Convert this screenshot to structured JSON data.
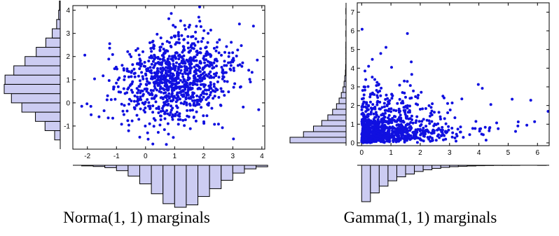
{
  "captions": {
    "left": "Norma(1, 1) marginals",
    "right": "Gamma(1, 1) marginals"
  },
  "colors": {
    "points": "#1010e0",
    "bars": "#ccccf2",
    "axes": "#000000"
  },
  "chart_data": [
    {
      "type": "scatter",
      "title": "",
      "xlabel": "",
      "ylabel": "",
      "xlim": [
        -2.5,
        4.1
      ],
      "ylim": [
        -2.0,
        4.2
      ],
      "x_ticks": [
        -2,
        -1,
        0,
        1,
        2,
        3,
        4
      ],
      "y_ticks": [
        -1,
        0,
        1,
        2,
        3,
        4
      ],
      "grid": false,
      "n_points": 1000,
      "distribution": {
        "family": "normal",
        "mean": [
          1,
          1
        ],
        "sd": [
          1,
          1
        ],
        "correlation": 0.2
      },
      "marginal_x": {
        "position": "bottom",
        "bin_edges": [
          -2.2,
          -1.8,
          -1.4,
          -1.0,
          -0.6,
          -0.2,
          0.2,
          0.6,
          1.0,
          1.4,
          1.8,
          2.2,
          2.6,
          3.0,
          3.4,
          3.8,
          4.2
        ],
        "counts": [
          2,
          4,
          8,
          18,
          36,
          62,
          95,
          128,
          140,
          132,
          104,
          78,
          50,
          26,
          12,
          5
        ]
      },
      "marginal_y": {
        "position": "left",
        "bin_edges": [
          -1.6,
          -1.2,
          -0.8,
          -0.4,
          0.0,
          0.4,
          0.8,
          1.2,
          1.6,
          2.0,
          2.4,
          2.8,
          3.2,
          3.6,
          4.0,
          4.4
        ],
        "counts": [
          14,
          38,
          62,
          96,
          122,
          140,
          138,
          116,
          88,
          60,
          36,
          20,
          9,
          4,
          2
        ]
      }
    },
    {
      "type": "scatter",
      "title": "",
      "xlabel": "",
      "ylabel": "",
      "xlim": [
        -0.15,
        6.4
      ],
      "ylim": [
        -0.15,
        7.5
      ],
      "x_ticks": [
        0,
        1,
        2,
        3,
        4,
        5,
        6
      ],
      "y_ticks": [
        0,
        1,
        2,
        3,
        4,
        5,
        6,
        7
      ],
      "grid": false,
      "n_points": 1000,
      "distribution": {
        "family": "gamma",
        "shape": [
          1,
          1
        ],
        "scale": [
          1,
          1
        ],
        "correlation": 0.2
      },
      "marginal_x": {
        "position": "bottom",
        "bin_edges": [
          0.0,
          0.3,
          0.6,
          0.9,
          1.2,
          1.5,
          1.8,
          2.1,
          2.4,
          2.7,
          3.0,
          3.3,
          3.6,
          3.9,
          4.2,
          4.5,
          4.8,
          5.1,
          5.4,
          5.7,
          6.0,
          6.3
        ],
        "counts": [
          258,
          196,
          148,
          110,
          82,
          62,
          44,
          32,
          22,
          15,
          10,
          7,
          5,
          3,
          2,
          1,
          1,
          1,
          0,
          0,
          1
        ]
      },
      "marginal_y": {
        "position": "left",
        "bin_edges": [
          0.0,
          0.3,
          0.6,
          0.9,
          1.2,
          1.5,
          1.8,
          2.1,
          2.4,
          2.7,
          3.0,
          3.3,
          3.6,
          3.9,
          4.2,
          4.5,
          4.8,
          5.1,
          5.4,
          5.7,
          6.0,
          6.3,
          6.6,
          6.9,
          7.2
        ],
        "counts": [
          258,
          196,
          150,
          112,
          84,
          62,
          44,
          32,
          22,
          14,
          9,
          6,
          3,
          2,
          1,
          1,
          1,
          1,
          0,
          1,
          0,
          1,
          0,
          1
        ]
      }
    }
  ]
}
